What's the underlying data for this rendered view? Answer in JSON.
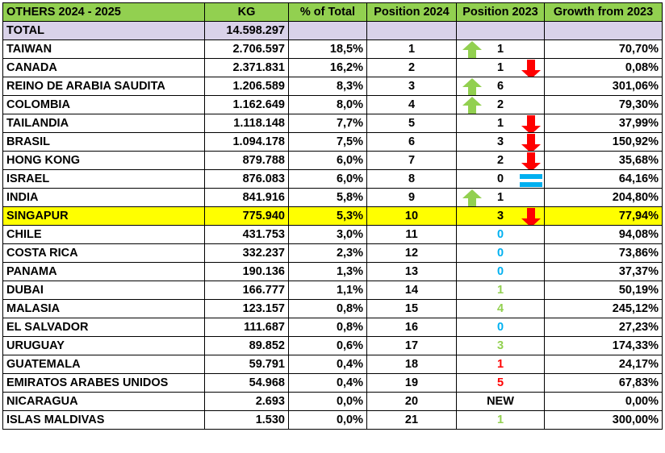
{
  "header": {
    "title": "OTHERS  2024 - 2025",
    "kg": "KG",
    "pct": "% of Total",
    "pos2024": "Position 2024",
    "pos2023": "Position 2023",
    "growth": "Growth from 2023"
  },
  "total": {
    "label": "TOTAL",
    "kg": "14.598.297"
  },
  "colors": {
    "header_bg": "#92d050",
    "total_bg": "#d9d2e9",
    "highlight_bg": "#ffff00",
    "arrow_up": "#92d050",
    "arrow_down": "#ff0000",
    "equal": "#00b0f0"
  },
  "rows": [
    {
      "country": "TAIWAN",
      "kg": "2.706.597",
      "pct": "18,5%",
      "pos2024": "1",
      "pos2023": "1",
      "growth": "70,70%",
      "trend": "up",
      "color": "black"
    },
    {
      "country": "CANADA",
      "kg": "2.371.831",
      "pct": "16,2%",
      "pos2024": "2",
      "pos2023": "1",
      "growth": "0,08%",
      "trend": "down",
      "color": "black"
    },
    {
      "country": "REINO DE ARABIA SAUDITA",
      "kg": "1.206.589",
      "pct": "8,3%",
      "pos2024": "3",
      "pos2023": "6",
      "growth": "301,06%",
      "trend": "up",
      "color": "black"
    },
    {
      "country": "COLOMBIA",
      "kg": "1.162.649",
      "pct": "8,0%",
      "pos2024": "4",
      "pos2023": "2",
      "growth": "79,30%",
      "trend": "up",
      "color": "black"
    },
    {
      "country": "TAILANDIA",
      "kg": "1.118.148",
      "pct": "7,7%",
      "pos2024": "5",
      "pos2023": "1",
      "growth": "37,99%",
      "trend": "down",
      "color": "black"
    },
    {
      "country": "BRASIL",
      "kg": "1.094.178",
      "pct": "7,5%",
      "pos2024": "6",
      "pos2023": "3",
      "growth": "150,92%",
      "trend": "down",
      "color": "black"
    },
    {
      "country": "HONG KONG",
      "kg": "879.788",
      "pct": "6,0%",
      "pos2024": "7",
      "pos2023": "2",
      "growth": "35,68%",
      "trend": "down",
      "color": "black"
    },
    {
      "country": "ISRAEL",
      "kg": "876.083",
      "pct": "6,0%",
      "pos2024": "8",
      "pos2023": "0",
      "growth": "64,16%",
      "trend": "equal",
      "color": "black"
    },
    {
      "country": "INDIA",
      "kg": "841.916",
      "pct": "5,8%",
      "pos2024": "9",
      "pos2023": "1",
      "growth": "204,80%",
      "trend": "up",
      "color": "black"
    },
    {
      "country": "SINGAPUR",
      "kg": "775.940",
      "pct": "5,3%",
      "pos2024": "10",
      "pos2023": "3",
      "growth": "77,94%",
      "trend": "down",
      "color": "black",
      "highlight": true
    },
    {
      "country": "CHILE",
      "kg": "431.753",
      "pct": "3,0%",
      "pos2024": "11",
      "pos2023": "0",
      "growth": "94,08%",
      "trend": "none",
      "color": "blue"
    },
    {
      "country": "COSTA RICA",
      "kg": "332.237",
      "pct": "2,3%",
      "pos2024": "12",
      "pos2023": "0",
      "growth": "73,86%",
      "trend": "none",
      "color": "blue"
    },
    {
      "country": "PANAMA",
      "kg": "190.136",
      "pct": "1,3%",
      "pos2024": "13",
      "pos2023": "0",
      "growth": "37,37%",
      "trend": "none",
      "color": "blue"
    },
    {
      "country": "DUBAI",
      "kg": "166.777",
      "pct": "1,1%",
      "pos2024": "14",
      "pos2023": "1",
      "growth": "50,19%",
      "trend": "none",
      "color": "green"
    },
    {
      "country": "MALASIA",
      "kg": "123.157",
      "pct": "0,8%",
      "pos2024": "15",
      "pos2023": "4",
      "growth": "245,12%",
      "trend": "none",
      "color": "green"
    },
    {
      "country": "EL SALVADOR",
      "kg": "111.687",
      "pct": "0,8%",
      "pos2024": "16",
      "pos2023": "0",
      "growth": "27,23%",
      "trend": "none",
      "color": "blue"
    },
    {
      "country": "URUGUAY",
      "kg": "89.852",
      "pct": "0,6%",
      "pos2024": "17",
      "pos2023": "3",
      "growth": "174,33%",
      "trend": "none",
      "color": "green"
    },
    {
      "country": "GUATEMALA",
      "kg": "59.791",
      "pct": "0,4%",
      "pos2024": "18",
      "pos2023": "1",
      "growth": "24,17%",
      "trend": "none",
      "color": "red"
    },
    {
      "country": "EMIRATOS ARABES UNIDOS",
      "kg": "54.968",
      "pct": "0,4%",
      "pos2024": "19",
      "pos2023": "5",
      "growth": "67,83%",
      "trend": "none",
      "color": "red"
    },
    {
      "country": "NICARAGUA",
      "kg": "2.693",
      "pct": "0,0%",
      "pos2024": "20",
      "pos2023": "NEW",
      "growth": "0,00%",
      "trend": "none",
      "color": "black"
    },
    {
      "country": "ISLAS MALDIVAS",
      "kg": "1.530",
      "pct": "0,0%",
      "pos2024": "21",
      "pos2023": "1",
      "growth": "300,00%",
      "trend": "none",
      "color": "green"
    }
  ]
}
